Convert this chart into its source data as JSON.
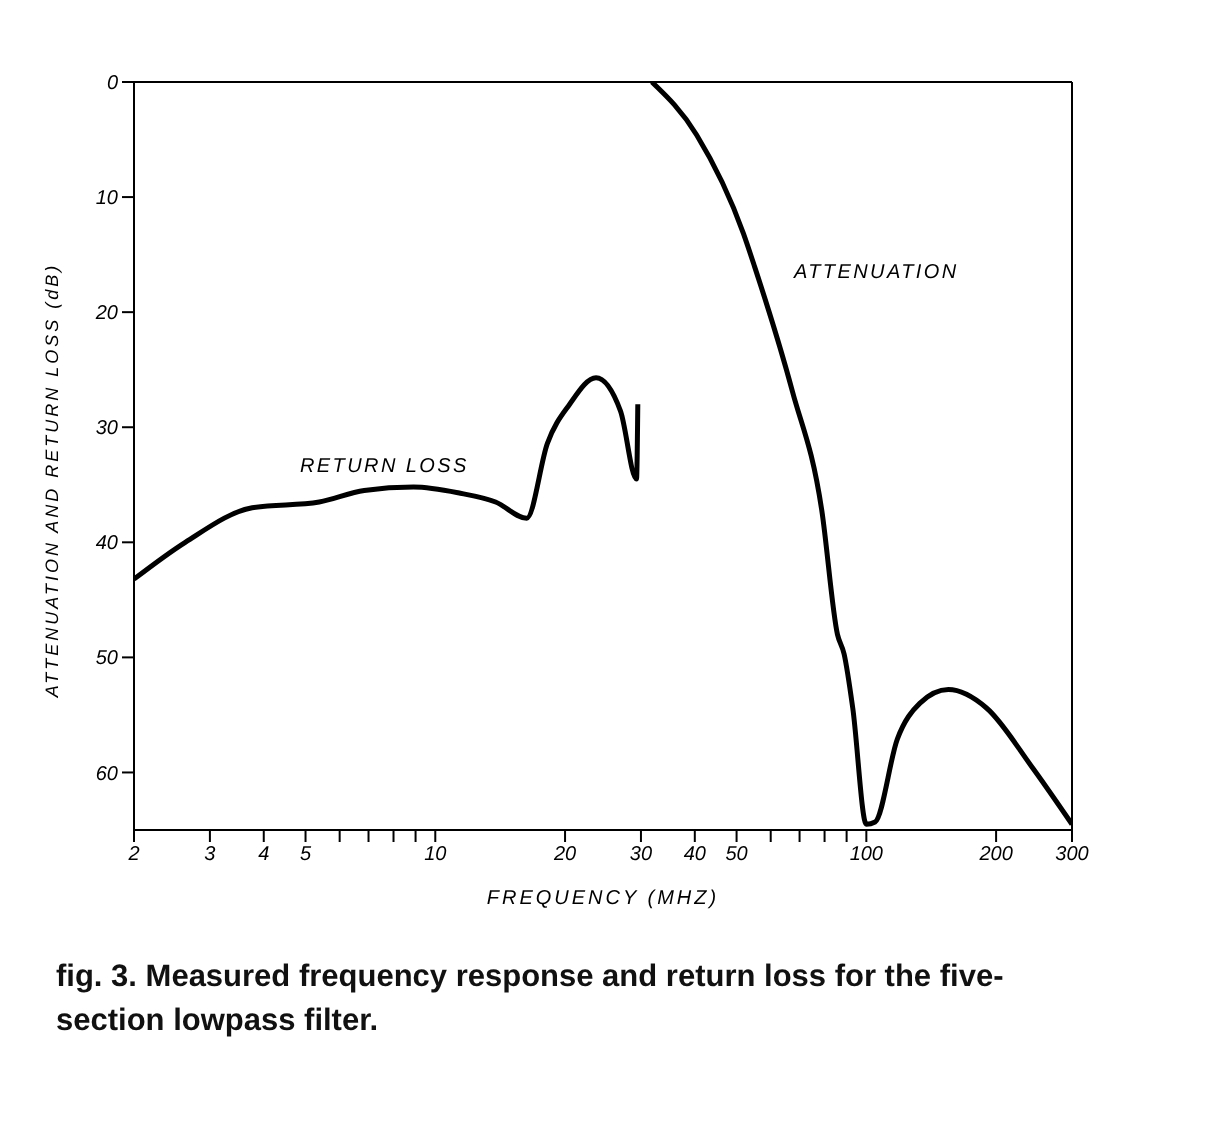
{
  "chart_data": {
    "type": "line",
    "xlabel": "FREQUENCY (MHZ)",
    "ylabel": "ATTENUATION AND RETURN LOSS (dB)",
    "log": "x",
    "xlim": [
      2,
      300
    ],
    "ylim": [
      65,
      0
    ],
    "xticks": [
      2,
      3,
      4,
      5,
      {
        "value": 6,
        "label": null
      },
      {
        "value": 7,
        "label": null
      },
      {
        "value": 8,
        "label": null
      },
      {
        "value": 9,
        "label": null
      },
      10,
      20,
      30,
      40,
      50,
      {
        "value": 60,
        "label": null
      },
      {
        "value": 70,
        "label": null
      },
      {
        "value": 80,
        "label": null
      },
      {
        "value": 90,
        "label": null
      },
      100,
      200,
      300
    ],
    "yticks": [
      0,
      10,
      20,
      30,
      40,
      50,
      60
    ],
    "series": [
      {
        "name": "RETURN LOSS",
        "color": "#000000",
        "x": [
          2,
          2.63,
          3.76,
          5.38,
          6.84,
          8.9,
          11.3,
          13.8,
          16.3,
          18.2,
          20.5,
          23.6,
          26.9,
          29.3,
          29.5
        ],
        "values": [
          43.2,
          40,
          37,
          36.5,
          35.5,
          35.2,
          35.7,
          36.5,
          37.9,
          31.4,
          28,
          25.7,
          28.6,
          34.5,
          28
        ]
      },
      {
        "name": "ATTENUATION",
        "color": "#000000",
        "x": [
          31.8,
          40.4,
          51.9,
          55,
          67.4,
          78.8,
          85.7,
          88.8,
          93,
          100,
          104.8,
          118,
          133,
          155,
          190,
          242,
          300
        ],
        "values": [
          0,
          4.6,
          13.2,
          16,
          26.9,
          37.2,
          48,
          49.7,
          54.4,
          64.5,
          64.3,
          57.1,
          54,
          52.8,
          54.4,
          59.5,
          64.5
        ]
      }
    ],
    "annotations": [
      "fig. 3. Measured frequency response and return loss for the five-section lowpass filter."
    ]
  }
}
